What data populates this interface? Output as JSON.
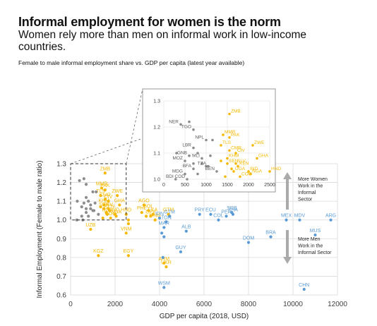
{
  "header": {
    "title": "Informal employment for women is the norm",
    "subtitle": "Women rely more than men on informal work in low-income countries.",
    "note": "Female to male informal employment share vs. GDP per capita (latest year available)"
  },
  "colors": {
    "low_income": "#8c8c8c",
    "lower_middle": "#f5b800",
    "upper_middle": "#5b9bd5",
    "arrow": "#aaaaaa",
    "grid": "#d9d9d9"
  },
  "annotations": {
    "up": [
      "More Women",
      "Work in the",
      "Informal",
      "Sector"
    ],
    "down": [
      "More Men",
      "Work in the",
      "Informal Sector"
    ]
  },
  "chart_data": {
    "type": "scatter",
    "xlabel": "GDP per capita (2018, USD)",
    "ylabel": "Informal Employment (Female to male ratio)",
    "xlim": [
      0,
      12000
    ],
    "ylim": [
      0.6,
      1.3
    ],
    "xticks": [
      "0",
      "2000",
      "4000",
      "6000",
      "8000",
      "10000",
      "12000"
    ],
    "yticks": [
      "0.6",
      "0.7",
      "0.8",
      "0.9",
      "1.0",
      "1.1",
      "1.2",
      "1.3"
    ],
    "series": [
      {
        "group": "low_income",
        "points": [
          {
            "label": "NER",
            "x": 400,
            "y": 1.21
          },
          {
            "label": "TGO",
            "x": 700,
            "y": 1.19
          },
          {
            "label": "",
            "x": 600,
            "y": 1.22
          },
          {
            "label": "NPL",
            "x": 1000,
            "y": 1.15
          },
          {
            "label": "",
            "x": 1150,
            "y": 1.15
          },
          {
            "label": "LBR",
            "x": 700,
            "y": 1.12
          },
          {
            "label": "GNB",
            "x": 600,
            "y": 1.09
          },
          {
            "label": "MLI",
            "x": 900,
            "y": 1.08
          },
          {
            "label": "",
            "x": 300,
            "y": 1.1
          },
          {
            "label": "",
            "x": 800,
            "y": 1.1
          },
          {
            "label": "",
            "x": 1100,
            "y": 1.09
          },
          {
            "label": "MOZ",
            "x": 500,
            "y": 1.07
          },
          {
            "label": "",
            "x": 700,
            "y": 1.06
          },
          {
            "label": "",
            "x": 900,
            "y": 1.06
          },
          {
            "label": "TZA",
            "x": 1050,
            "y": 1.05
          },
          {
            "label": "BFA",
            "x": 700,
            "y": 1.04
          },
          {
            "label": "",
            "x": 1000,
            "y": 1.05
          },
          {
            "label": "BEN",
            "x": 1250,
            "y": 1.03
          },
          {
            "label": "MDG",
            "x": 500,
            "y": 1.02
          },
          {
            "label": "",
            "x": 800,
            "y": 1.02
          },
          {
            "label": "COD",
            "x": 550,
            "y": 1.0
          },
          {
            "label": "BDI",
            "x": 280,
            "y": 1.0
          }
        ]
      },
      {
        "group": "lower_middle",
        "points": [
          {
            "label": "ZMB",
            "x": 1550,
            "y": 1.25
          },
          {
            "label": "MMR",
            "x": 1400,
            "y": 1.17
          },
          {
            "label": "PAK",
            "x": 1550,
            "y": 1.16
          },
          {
            "label": "TLS",
            "x": 1350,
            "y": 1.13
          },
          {
            "label": "CMR",
            "x": 1550,
            "y": 1.11
          },
          {
            "label": "CIV",
            "x": 1700,
            "y": 1.1
          },
          {
            "label": "ZWE",
            "x": 2100,
            "y": 1.13
          },
          {
            "label": "KHM",
            "x": 1500,
            "y": 1.08
          },
          {
            "label": "GHA",
            "x": 2200,
            "y": 1.08
          },
          {
            "label": "",
            "x": 1350,
            "y": 1.07
          },
          {
            "label": "SEN",
            "x": 1500,
            "y": 1.06
          },
          {
            "label": "SLV",
            "x": 1700,
            "y": 1.06
          },
          {
            "label": "KEN",
            "x": 1750,
            "y": 1.05
          },
          {
            "label": "",
            "x": 1600,
            "y": 1.04
          },
          {
            "label": "UGA",
            "x": 1650,
            "y": 1.03
          },
          {
            "label": "IND",
            "x": 2000,
            "y": 1.03
          },
          {
            "label": "HND",
            "x": 2500,
            "y": 1.03
          },
          {
            "label": "COG",
            "x": 1800,
            "y": 1.01
          },
          {
            "label": "NGA",
            "x": 2050,
            "y": 1.02
          },
          {
            "label": "",
            "x": 1450,
            "y": 1.01
          },
          {
            "label": "AGO",
            "x": 3300,
            "y": 1.08
          },
          {
            "label": "BOL",
            "x": 3500,
            "y": 1.05
          },
          {
            "label": "PHL",
            "x": 3200,
            "y": 1.04
          },
          {
            "label": "LKA",
            "x": 3700,
            "y": 1.03
          },
          {
            "label": "",
            "x": 3400,
            "y": 1.02
          },
          {
            "label": "CPV",
            "x": 3600,
            "y": 1.02
          },
          {
            "label": "MNG",
            "x": 3800,
            "y": 1.0
          },
          {
            "label": "",
            "x": 2600,
            "y": 1.0
          },
          {
            "label": "",
            "x": 2600,
            "y": 0.98
          },
          {
            "label": "UZB",
            "x": 900,
            "y": 0.95
          },
          {
            "label": "VNM",
            "x": 2500,
            "y": 0.93
          },
          {
            "label": "KGZ",
            "x": 1250,
            "y": 0.81
          },
          {
            "label": "EGY",
            "x": 2600,
            "y": 0.81
          },
          {
            "label": "ARM",
            "x": 4200,
            "y": 0.77
          },
          {
            "label": "UKR",
            "x": 4300,
            "y": 0.75
          },
          {
            "label": "GTM",
            "x": 4400,
            "y": 1.03
          }
        ]
      },
      {
        "group": "upper_middle",
        "points": [
          {
            "label": "GTM",
            "x": 4450,
            "y": 1.02
          },
          {
            "label": "IDN",
            "x": 4000,
            "y": 1.01
          },
          {
            "label": "TON",
            "x": 4300,
            "y": 0.99
          },
          {
            "label": "MAR",
            "x": 4200,
            "y": 0.96
          },
          {
            "label": "",
            "x": 4100,
            "y": 0.93
          },
          {
            "label": "",
            "x": 4200,
            "y": 0.91
          },
          {
            "label": "ALB",
            "x": 5200,
            "y": 0.94
          },
          {
            "label": "GUY",
            "x": 4950,
            "y": 0.83
          },
          {
            "label": "",
            "x": 4150,
            "y": 0.8
          },
          {
            "label": "WSM",
            "x": 4200,
            "y": 0.64
          },
          {
            "label": "PRY",
            "x": 5800,
            "y": 1.03
          },
          {
            "label": "ECU",
            "x": 6300,
            "y": 1.03
          },
          {
            "label": "COL",
            "x": 6650,
            "y": 1.0
          },
          {
            "label": "SRB",
            "x": 7250,
            "y": 1.04
          },
          {
            "label": "THA",
            "x": 7300,
            "y": 1.03
          },
          {
            "label": "PER",
            "x": 7000,
            "y": 1.02
          },
          {
            "label": "DOM",
            "x": 8000,
            "y": 0.88
          },
          {
            "label": "BRA",
            "x": 9000,
            "y": 0.91
          },
          {
            "label": "MEX",
            "x": 9700,
            "y": 1.0
          },
          {
            "label": "MDV",
            "x": 10300,
            "y": 1.0
          },
          {
            "label": "ARG",
            "x": 11700,
            "y": 1.0
          },
          {
            "label": "MUS",
            "x": 11000,
            "y": 0.92
          },
          {
            "label": "CHN",
            "x": 10500,
            "y": 0.63
          }
        ]
      }
    ],
    "inset": {
      "xlim": [
        0,
        2500
      ],
      "ylim": [
        1.0,
        1.3
      ],
      "xticks": [
        "0",
        "500",
        "1000",
        "1500",
        "2000",
        "2500"
      ],
      "yticks": [
        "1.0",
        "1.1",
        "1.2",
        "1.3"
      ]
    }
  }
}
